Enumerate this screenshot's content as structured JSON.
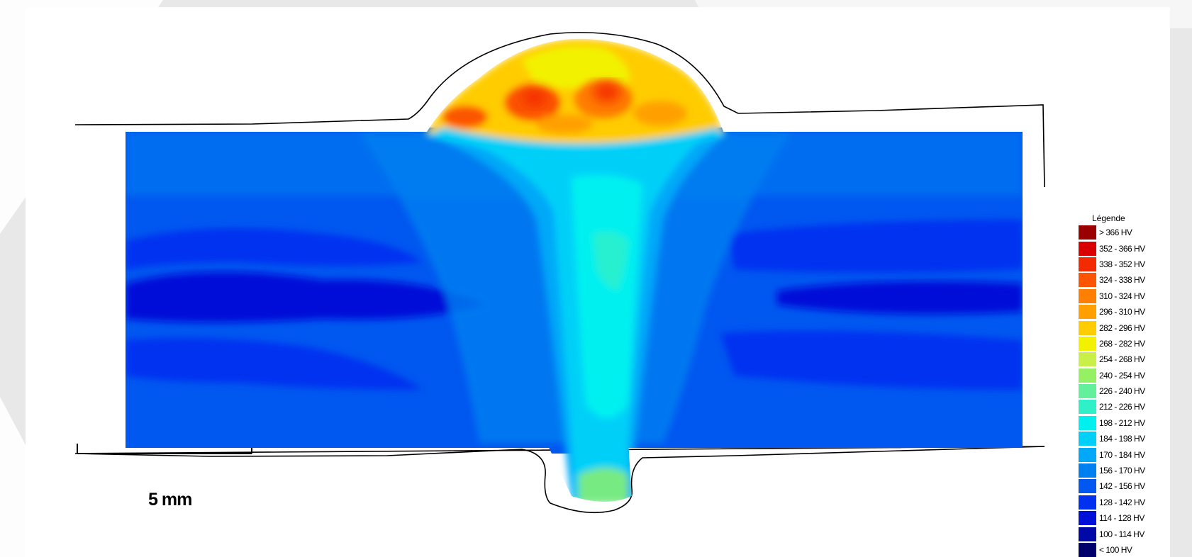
{
  "chart_data": {
    "type": "heatmap",
    "title": "",
    "scale_bar": "5 mm",
    "legend": {
      "title": "Légende",
      "entries": [
        {
          "label": "> 366 HV",
          "color": "#9b0000"
        },
        {
          "label": "352 - 366 HV",
          "color": "#d80000"
        },
        {
          "label": "338 - 352 HV",
          "color": "#f42a00"
        },
        {
          "label": "324 - 338 HV",
          "color": "#fc5400"
        },
        {
          "label": "310 - 324 HV",
          "color": "#ff7f00"
        },
        {
          "label": "296 - 310 HV",
          "color": "#ffa000"
        },
        {
          "label": "282 - 296 HV",
          "color": "#ffcc00"
        },
        {
          "label": "268 - 282 HV",
          "color": "#f2f200"
        },
        {
          "label": "254 - 268 HV",
          "color": "#c8f048"
        },
        {
          "label": "240 - 254 HV",
          "color": "#96f064"
        },
        {
          "label": "226 - 240 HV",
          "color": "#64f09a"
        },
        {
          "label": "212 - 226 HV",
          "color": "#30f0c8"
        },
        {
          "label": "198 - 212 HV",
          "color": "#00f0f0"
        },
        {
          "label": "184 - 198 HV",
          "color": "#00d0f8"
        },
        {
          "label": "170 - 184 HV",
          "color": "#00a8f8"
        },
        {
          "label": "156 - 170 HV",
          "color": "#0080f0"
        },
        {
          "label": "142 - 156 HV",
          "color": "#0058f0"
        },
        {
          "label": "128 - 142 HV",
          "color": "#0030f0"
        },
        {
          "label": "114 - 128 HV",
          "color": "#0010d8"
        },
        {
          "label": "100 - 114 HV",
          "color": "#0008a8"
        },
        {
          "label": "< 100 HV",
          "color": "#00006c"
        }
      ]
    }
  }
}
